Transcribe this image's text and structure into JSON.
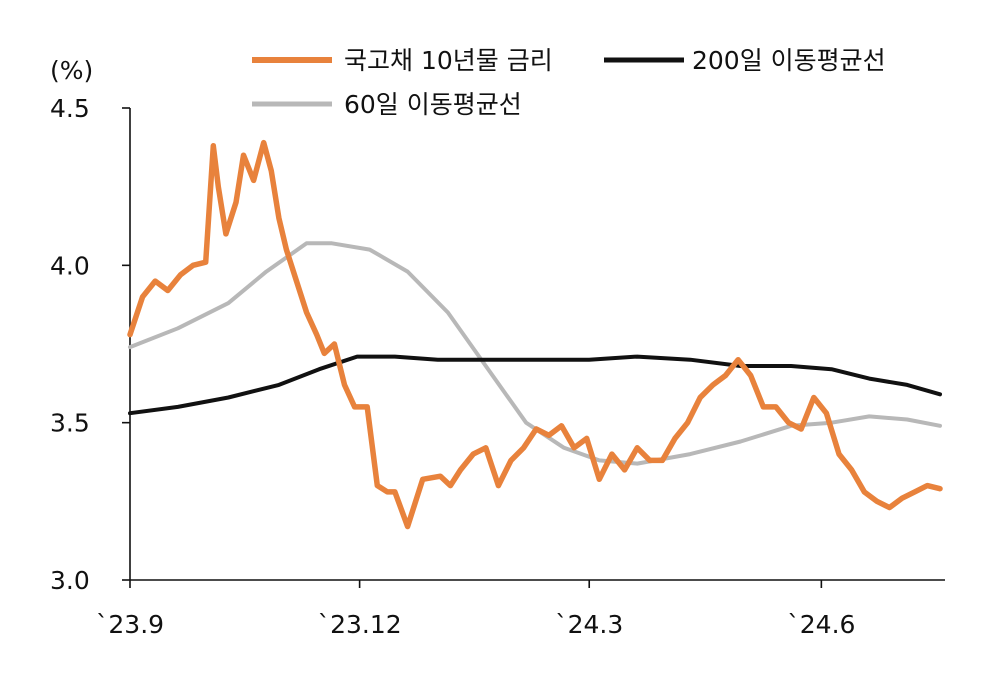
{
  "chart_data": {
    "type": "line",
    "title": "",
    "ylabel": "(%)",
    "xlabel": "",
    "ylim": [
      3.0,
      4.5
    ],
    "y_ticks": [
      "4.5",
      "4.0",
      "3.5",
      "3.0"
    ],
    "x_ticks": [
      "`23.9",
      "`23.12",
      "`24.3",
      "`24.6"
    ],
    "grid": false,
    "legend_placement": "top",
    "series": [
      {
        "name": "국고채 10년물 금리",
        "color": "#E8823C",
        "x": [
          "2023-09-01",
          "2023-09-06",
          "2023-09-11",
          "2023-09-16",
          "2023-09-21",
          "2023-09-26",
          "2023-10-01",
          "2023-10-04",
          "2023-10-06",
          "2023-10-09",
          "2023-10-13",
          "2023-10-16",
          "2023-10-20",
          "2023-10-24",
          "2023-10-27",
          "2023-10-30",
          "2023-11-02",
          "2023-11-06",
          "2023-11-10",
          "2023-11-14",
          "2023-11-17",
          "2023-11-21",
          "2023-11-25",
          "2023-11-29",
          "2023-12-04",
          "2023-12-08",
          "2023-12-12",
          "2023-12-15",
          "2023-12-20",
          "2023-12-26",
          "2024-01-02",
          "2024-01-06",
          "2024-01-10",
          "2024-01-15",
          "2024-01-20",
          "2024-01-25",
          "2024-01-30",
          "2024-02-04",
          "2024-02-09",
          "2024-02-14",
          "2024-02-19",
          "2024-02-24",
          "2024-02-29",
          "2024-03-05",
          "2024-03-10",
          "2024-03-15",
          "2024-03-20",
          "2024-03-25",
          "2024-03-30",
          "2024-04-04",
          "2024-04-09",
          "2024-04-14",
          "2024-04-19",
          "2024-04-24",
          "2024-04-29",
          "2024-05-04",
          "2024-05-09",
          "2024-05-14",
          "2024-05-19",
          "2024-05-24",
          "2024-05-29",
          "2024-06-03",
          "2024-06-08",
          "2024-06-13",
          "2024-06-18",
          "2024-06-23",
          "2024-06-28",
          "2024-07-03",
          "2024-07-08",
          "2024-07-13",
          "2024-07-18"
        ],
        "values": [
          3.78,
          3.9,
          3.95,
          3.92,
          3.97,
          4.0,
          4.01,
          4.38,
          4.25,
          4.1,
          4.2,
          4.35,
          4.27,
          4.39,
          4.3,
          4.15,
          4.05,
          3.95,
          3.85,
          3.78,
          3.72,
          3.75,
          3.62,
          3.55,
          3.55,
          3.3,
          3.28,
          3.28,
          3.17,
          3.32,
          3.33,
          3.3,
          3.35,
          3.4,
          3.42,
          3.3,
          3.38,
          3.42,
          3.48,
          3.46,
          3.49,
          3.42,
          3.45,
          3.32,
          3.4,
          3.35,
          3.42,
          3.38,
          3.38,
          3.45,
          3.5,
          3.58,
          3.62,
          3.65,
          3.7,
          3.65,
          3.55,
          3.55,
          3.5,
          3.48,
          3.58,
          3.53,
          3.4,
          3.35,
          3.28,
          3.25,
          3.23,
          3.26,
          3.28,
          3.3,
          3.29
        ]
      },
      {
        "name": "200일 이동평균선",
        "color": "#111111",
        "x": [
          "2023-09-01",
          "2023-09-20",
          "2023-10-10",
          "2023-10-30",
          "2023-11-15",
          "2023-11-30",
          "2023-12-15",
          "2024-01-01",
          "2024-01-20",
          "2024-02-10",
          "2024-03-01",
          "2024-03-20",
          "2024-04-10",
          "2024-04-30",
          "2024-05-20",
          "2024-06-05",
          "2024-06-20",
          "2024-07-05",
          "2024-07-18"
        ],
        "values": [
          3.53,
          3.55,
          3.58,
          3.62,
          3.67,
          3.71,
          3.71,
          3.7,
          3.7,
          3.7,
          3.7,
          3.71,
          3.7,
          3.68,
          3.68,
          3.67,
          3.64,
          3.62,
          3.59
        ]
      },
      {
        "name": "60일 이동평균선",
        "color": "#B8B8B8",
        "x": [
          "2023-09-01",
          "2023-09-20",
          "2023-10-10",
          "2023-10-25",
          "2023-11-10",
          "2023-11-20",
          "2023-12-05",
          "2023-12-20",
          "2024-01-05",
          "2024-01-20",
          "2024-02-05",
          "2024-02-20",
          "2024-03-05",
          "2024-03-20",
          "2024-04-10",
          "2024-04-30",
          "2024-05-20",
          "2024-06-05",
          "2024-06-20",
          "2024-07-05",
          "2024-07-18"
        ],
        "values": [
          3.74,
          3.8,
          3.88,
          3.98,
          4.07,
          4.07,
          4.05,
          3.98,
          3.85,
          3.68,
          3.5,
          3.42,
          3.38,
          3.37,
          3.4,
          3.44,
          3.49,
          3.5,
          3.52,
          3.51,
          3.49
        ]
      }
    ]
  }
}
